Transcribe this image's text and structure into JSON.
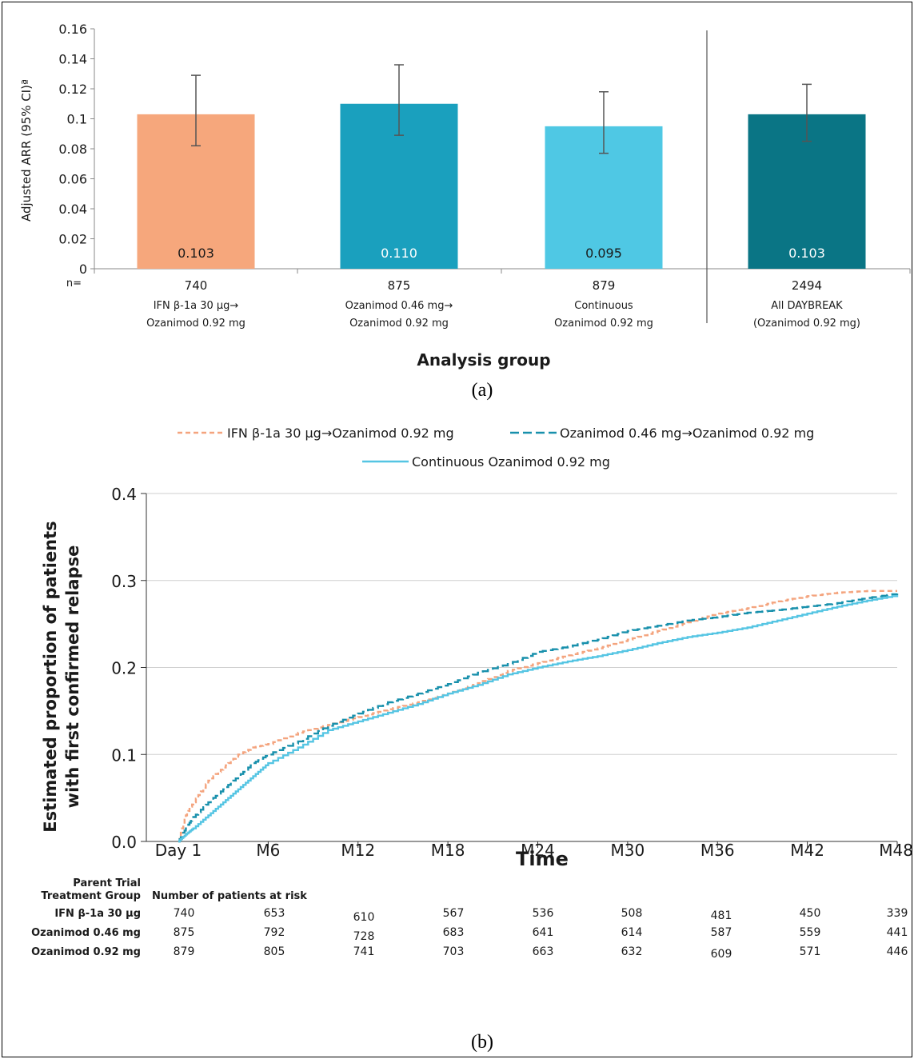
{
  "panel_a": {
    "caption": "(a)",
    "n_label": "n=",
    "chart_data": {
      "type": "bar",
      "ylabel": "Adjusted ARR (95% CI)ª",
      "xlabel": "Analysis group",
      "ylim": [
        0,
        0.16
      ],
      "yticks": [
        "0",
        "0.02",
        "0.04",
        "0.06",
        "0.08",
        "0.1",
        "0.12",
        "0.14",
        "0.16"
      ],
      "grid": false,
      "categories": [
        {
          "n": "740",
          "line1": "IFN β-1a 30 µg→",
          "line2": "Ozanimod 0.92 mg"
        },
        {
          "n": "875",
          "line1": "Ozanimod 0.46 mg→",
          "line2": "Ozanimod 0.92 mg"
        },
        {
          "n": "879",
          "line1": "Continuous",
          "line2": "Ozanimod 0.92 mg"
        },
        {
          "n": "2494",
          "line1": "All DAYBREAK",
          "line2": "(Ozanimod 0.92 mg)"
        }
      ],
      "values": [
        0.103,
        0.11,
        0.095,
        0.103
      ],
      "value_labels": [
        "0.103",
        "0.110",
        "0.095",
        "0.103"
      ],
      "ci_low": [
        0.082,
        0.089,
        0.077,
        0.085
      ],
      "ci_high": [
        0.129,
        0.136,
        0.118,
        0.123
      ],
      "colors": [
        "#F6A77C",
        "#1AA0BE",
        "#4FC8E4",
        "#0A7585"
      ],
      "label_colors": [
        "#1a1a1a",
        "#ffffff",
        "#1a1a1a",
        "#ffffff"
      ]
    }
  },
  "panel_b": {
    "caption": "(b)",
    "chart_data": {
      "type": "line",
      "xlabel": "Time",
      "ylabel_line1": "Estimated proportion of patients",
      "ylabel_line2": "with first confirmed relapse",
      "x_ticks": [
        "Day 1",
        "M6",
        "M12",
        "M18",
        "M24",
        "M30",
        "M36",
        "M42",
        "M48"
      ],
      "ylim": [
        0,
        0.4
      ],
      "yticks": [
        "0.0",
        "0.1",
        "0.2",
        "0.3",
        "0.4"
      ],
      "grid": true,
      "legend_position": "top",
      "series": [
        {
          "name": "IFN β-1a 30 µg→Ozanimod 0.92 mg",
          "color": "#F4A47E",
          "dash": "short",
          "x": [
            0,
            0.5,
            1,
            2,
            3,
            4,
            5,
            6,
            8,
            10,
            12,
            14,
            16,
            18,
            20,
            22,
            24,
            26,
            28,
            30,
            32,
            34,
            36,
            38,
            40,
            42,
            44,
            46,
            48
          ],
          "y": [
            0,
            0.03,
            0.045,
            0.07,
            0.085,
            0.1,
            0.108,
            0.112,
            0.125,
            0.134,
            0.143,
            0.152,
            0.16,
            0.17,
            0.182,
            0.196,
            0.205,
            0.214,
            0.222,
            0.232,
            0.242,
            0.252,
            0.262,
            0.268,
            0.276,
            0.282,
            0.286,
            0.288,
            0.288
          ]
        },
        {
          "name": "Ozanimod 0.46 mg→Ozanimod 0.92 mg",
          "color": "#1890AC",
          "dash": "long",
          "x": [
            0,
            0.5,
            1,
            2,
            3,
            4,
            5,
            6,
            8,
            10,
            12,
            14,
            16,
            18,
            20,
            22,
            24,
            26,
            28,
            30,
            32,
            34,
            36,
            38,
            40,
            42,
            44,
            46,
            48
          ],
          "y": [
            0,
            0.015,
            0.028,
            0.045,
            0.06,
            0.075,
            0.09,
            0.1,
            0.115,
            0.133,
            0.147,
            0.16,
            0.17,
            0.181,
            0.194,
            0.204,
            0.218,
            0.224,
            0.232,
            0.242,
            0.248,
            0.254,
            0.258,
            0.263,
            0.266,
            0.27,
            0.274,
            0.28,
            0.285
          ]
        },
        {
          "name": "Continuous Ozanimod 0.92 mg",
          "color": "#55C5E3",
          "dash": "solid",
          "x": [
            0,
            0.5,
            1,
            2,
            3,
            4,
            5,
            6,
            8,
            10,
            12,
            14,
            16,
            18,
            20,
            22,
            24,
            26,
            28,
            30,
            32,
            34,
            36,
            38,
            40,
            42,
            44,
            46,
            48
          ],
          "y": [
            0,
            0.008,
            0.015,
            0.03,
            0.045,
            0.06,
            0.075,
            0.09,
            0.108,
            0.128,
            0.138,
            0.148,
            0.158,
            0.17,
            0.18,
            0.192,
            0.2,
            0.207,
            0.213,
            0.22,
            0.228,
            0.235,
            0.24,
            0.246,
            0.254,
            0.262,
            0.27,
            0.277,
            0.283
          ]
        }
      ]
    },
    "risk_table": {
      "header_line1": "Parent Trial",
      "header_line2": "Treatment Group",
      "subheader": "Number of patients at risk",
      "rows": [
        {
          "label": "IFN β-1a 30 µg",
          "values": [
            "740",
            "653",
            "610",
            "567",
            "536",
            "508",
            "481",
            "450",
            "339"
          ]
        },
        {
          "label": "Ozanimod 0.46 mg",
          "values": [
            "875",
            "792",
            "728",
            "683",
            "641",
            "614",
            "587",
            "559",
            "441"
          ]
        },
        {
          "label": "Ozanimod 0.92 mg",
          "values": [
            "879",
            "805",
            "741",
            "703",
            "663",
            "632",
            "609",
            "571",
            "446"
          ]
        }
      ]
    }
  }
}
